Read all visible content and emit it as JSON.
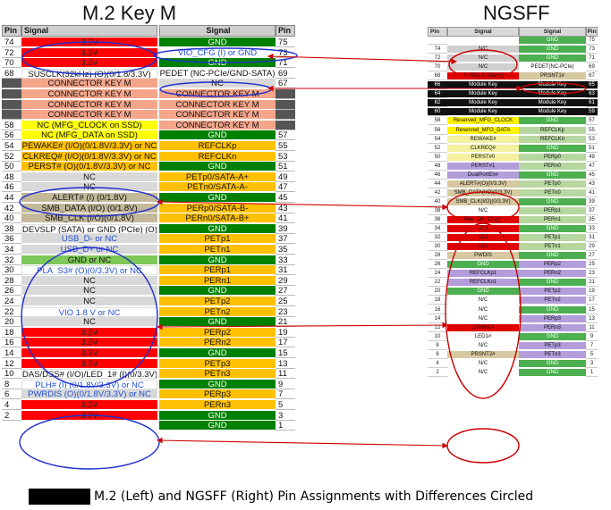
{
  "titles": {
    "left": "M.2 Key M",
    "right": "NGSFF"
  },
  "headers": {
    "pin": "Pin",
    "signal": "Signal"
  },
  "colors": {
    "red": "#ff0000",
    "green": "#008000",
    "orange": "#ffc000",
    "salmon": "#f4a58a",
    "yellow": "#ffff00",
    "tan": "#c4b89a",
    "light": "#d9d9d9",
    "white": "#ffffff",
    "blue_text": "#1f4fd8",
    "circle_red": "#cc0000",
    "circle_blue": "#1e2fd0",
    "ng_green": "#4caf50",
    "ng_lgreen": "#b7d7a0",
    "ng_yellow": "#fff200",
    "ng_lyellow": "#f3f0a0",
    "ng_purple": "#b39ddb",
    "ng_tan": "#d6c8a0",
    "ng_black": "#111111",
    "ng_red": "#e00000",
    "ng_grey": "#d0d0d0"
  },
  "m2": {
    "left_rows": [
      {
        "pin": "74",
        "signal": "3.3V",
        "color": "red"
      },
      {
        "pin": "72",
        "signal": "3.3V",
        "color": "red"
      },
      {
        "pin": "70",
        "signal": "3.3V",
        "color": "red"
      },
      {
        "pin": "68",
        "signal": "SUSCLK(32kHz) (O)(0/1.8/3.3V)",
        "color": "white"
      },
      {
        "pin": "",
        "signal": "CONNECTOR KEY M",
        "color": "salmon"
      },
      {
        "pin": "",
        "signal": "CONNECTOR KEY M",
        "color": "salmon"
      },
      {
        "pin": "",
        "signal": "CONNECTOR KEY M",
        "color": "salmon"
      },
      {
        "pin": "",
        "signal": "CONNECTOR KEY M",
        "color": "salmon"
      },
      {
        "pin": "58",
        "signal": "NC (MFG_CLOCK on SSD)",
        "color": "yellow"
      },
      {
        "pin": "56",
        "signal": "NC (MFG_DATA on SSD)",
        "color": "yellow"
      },
      {
        "pin": "54",
        "signal": "PEWAKE# (I/O)(0/1.8V/3.3V) or NC",
        "color": "orange"
      },
      {
        "pin": "52",
        "signal": "CLKREQ# (I/O)(0/1.8V/3.3V) or NC",
        "color": "orange"
      },
      {
        "pin": "50",
        "signal": "PERST# (O)(0/1.8V/3.3V) or NC",
        "color": "orange"
      },
      {
        "pin": "48",
        "signal": "NC",
        "color": "light"
      },
      {
        "pin": "46",
        "signal": "NC",
        "color": "light"
      },
      {
        "pin": "44",
        "signal": "ALERT# (I) (0/1.8V)",
        "color": "tan"
      },
      {
        "pin": "42",
        "signal": "SMB_DATA (I/O) (0/1.8V)",
        "color": "tan"
      },
      {
        "pin": "40",
        "signal": "SMB_CLK (I/O)(0/1.8V)",
        "color": "tan"
      },
      {
        "pin": "38",
        "signal": "DEVSLP (SATA) or GND (PCIe) (O)",
        "color": "white"
      },
      {
        "pin": "36",
        "signal": "USB_D- or NC",
        "color": "light",
        "blue": true
      },
      {
        "pin": "34",
        "signal": "USB_D+ or NC",
        "color": "light",
        "blue": true
      },
      {
        "pin": "32",
        "signal": "GND or NC",
        "color": "green_light"
      },
      {
        "pin": "30",
        "signal": "PLA_S3# (O)(0/3.3V) or NC",
        "color": "white",
        "blue": true
      },
      {
        "pin": "28",
        "signal": "NC",
        "color": "light"
      },
      {
        "pin": "26",
        "signal": "NC",
        "color": "light"
      },
      {
        "pin": "24",
        "signal": "NC",
        "color": "light"
      },
      {
        "pin": "22",
        "signal": "VIO 1.8 V or NC",
        "color": "white",
        "blue": true
      },
      {
        "pin": "20",
        "signal": "NC",
        "color": "light"
      },
      {
        "pin": "18",
        "signal": "3.3V",
        "color": "red"
      },
      {
        "pin": "16",
        "signal": "3.3V",
        "color": "red"
      },
      {
        "pin": "14",
        "signal": "3.3V",
        "color": "red"
      },
      {
        "pin": "12",
        "signal": "3.3V",
        "color": "red"
      },
      {
        "pin": "10",
        "signal": "DAS/DSS# (I/O)/LED_1# (I)(0/3.3V)",
        "color": "white"
      },
      {
        "pin": "8",
        "signal": "PLH# (I) (0/1.8V/3.3V) or NC",
        "color": "white",
        "blue": true
      },
      {
        "pin": "6",
        "signal": "PWRDIS (O)(0/1.8V/3.3V) or NC",
        "color": "light",
        "blue": true
      },
      {
        "pin": "4",
        "signal": "3.3V",
        "color": "red"
      },
      {
        "pin": "2",
        "signal": "3.3V",
        "color": "red"
      }
    ],
    "right_rows": [
      {
        "pin": "75",
        "signal": "GND",
        "color": "green"
      },
      {
        "pin": "73",
        "signal": "VIO_CFG (I) or GND",
        "color": "white",
        "blue": true
      },
      {
        "pin": "71",
        "signal": "GND",
        "color": "green"
      },
      {
        "pin": "69",
        "signal": "PEDET (NC-PCIe/GND-SATA)",
        "color": "white"
      },
      {
        "pin": "67",
        "signal": "NC",
        "color": "light"
      },
      {
        "pin": "",
        "signal": "CONNECTOR KEY M",
        "color": "salmon"
      },
      {
        "pin": "",
        "signal": "CONNECTOR KEY M",
        "color": "salmon"
      },
      {
        "pin": "",
        "signal": "CONNECTOR KEY M",
        "color": "salmon"
      },
      {
        "pin": "",
        "signal": "CONNECTOR KEY M",
        "color": "salmon"
      },
      {
        "pin": "57",
        "signal": "GND",
        "color": "green"
      },
      {
        "pin": "55",
        "signal": "REFCLKp",
        "color": "orange"
      },
      {
        "pin": "53",
        "signal": "REFCLKn",
        "color": "orange"
      },
      {
        "pin": "51",
        "signal": "GND",
        "color": "green"
      },
      {
        "pin": "49",
        "signal": "PETp0/SATA-A+",
        "color": "orange"
      },
      {
        "pin": "47",
        "signal": "PETn0/SATA-A-",
        "color": "orange"
      },
      {
        "pin": "45",
        "signal": "GND",
        "color": "green"
      },
      {
        "pin": "43",
        "signal": "PERp0/SATA-B-",
        "color": "orange"
      },
      {
        "pin": "41",
        "signal": "PERn0/SATA-B+",
        "color": "orange"
      },
      {
        "pin": "39",
        "signal": "GND",
        "color": "green"
      },
      {
        "pin": "37",
        "signal": "PETp1",
        "color": "orange"
      },
      {
        "pin": "35",
        "signal": "PETn1",
        "color": "orange"
      },
      {
        "pin": "33",
        "signal": "GND",
        "color": "green"
      },
      {
        "pin": "31",
        "signal": "PERp1",
        "color": "orange"
      },
      {
        "pin": "29",
        "signal": "PERn1",
        "color": "orange"
      },
      {
        "pin": "27",
        "signal": "GND",
        "color": "green"
      },
      {
        "pin": "25",
        "signal": "PETp2",
        "color": "orange"
      },
      {
        "pin": "23",
        "signal": "PETn2",
        "color": "orange"
      },
      {
        "pin": "21",
        "signal": "GND",
        "color": "green"
      },
      {
        "pin": "19",
        "signal": "PERp2",
        "color": "orange"
      },
      {
        "pin": "17",
        "signal": "PERn2",
        "color": "orange"
      },
      {
        "pin": "15",
        "signal": "GND",
        "color": "green"
      },
      {
        "pin": "13",
        "signal": "PETp3",
        "color": "orange"
      },
      {
        "pin": "11",
        "signal": "PETn3",
        "color": "orange"
      },
      {
        "pin": "9",
        "signal": "GND",
        "color": "green"
      },
      {
        "pin": "7",
        "signal": "PERp3",
        "color": "orange"
      },
      {
        "pin": "5",
        "signal": "PERn3",
        "color": "orange"
      },
      {
        "pin": "3",
        "signal": "GND",
        "color": "green"
      },
      {
        "pin": "1",
        "signal": "GND",
        "color": "green"
      }
    ]
  },
  "ngsff": {
    "left_rows": [
      {
        "pin": "",
        "signal": "",
        "color": "white"
      },
      {
        "pin": "74",
        "signal": "N/C",
        "color": "ng_grey"
      },
      {
        "pin": "72",
        "signal": "N/C",
        "color": "ng_grey"
      },
      {
        "pin": "70",
        "signal": "N/C",
        "color": "ng_grey"
      },
      {
        "pin": "68",
        "signal": "SUSCLK(32kHz)",
        "color": "ng_red"
      },
      {
        "pin": "66",
        "signal": "Module Key",
        "color": "ng_black"
      },
      {
        "pin": "64",
        "signal": "Module Key",
        "color": "ng_black"
      },
      {
        "pin": "62",
        "signal": "Module Key",
        "color": "ng_black"
      },
      {
        "pin": "60",
        "signal": "Module Key",
        "color": "ng_black"
      },
      {
        "pin": "58",
        "signal": "Reserved_MFG_CLOCK",
        "color": "ng_yellow"
      },
      {
        "pin": "56",
        "signal": "Reserved_MFG_DATA",
        "color": "ng_yellow"
      },
      {
        "pin": "54",
        "signal": "REWAKE#",
        "color": "ng_lyellow"
      },
      {
        "pin": "52",
        "signal": "CLKREQ#",
        "color": "ng_lyellow"
      },
      {
        "pin": "50",
        "signal": "PERST#0",
        "color": "ng_lyellow"
      },
      {
        "pin": "48",
        "signal": "PERST#1",
        "color": "ng_purple"
      },
      {
        "pin": "46",
        "signal": "DualPortEn#",
        "color": "ng_purple"
      },
      {
        "pin": "44",
        "signal": "ALERT#(O)(0/3.3V)",
        "color": "ng_tan"
      },
      {
        "pin": "42",
        "signal": "SMB_DATA(I/O)(0/3.3V)",
        "color": "ng_tan"
      },
      {
        "pin": "40",
        "signal": "SMB_CLK(I/O)(0/3.3V)",
        "color": "ng_tan"
      },
      {
        "pin": "38",
        "signal": "N/C",
        "color": "white"
      },
      {
        "pin": "36",
        "signal": "Pwr_Dis_Charg",
        "color": "ng_red"
      },
      {
        "pin": "34",
        "signal": "12V",
        "color": "ng_red"
      },
      {
        "pin": "32",
        "signal": "12V",
        "color": "ng_red"
      },
      {
        "pin": "30",
        "signal": "12V",
        "color": "ng_red"
      },
      {
        "pin": "28",
        "signal": "PWDIS",
        "color": "ng_tan"
      },
      {
        "pin": "26",
        "signal": "GND",
        "color": "ng_green"
      },
      {
        "pin": "24",
        "signal": "REFCLKp1",
        "color": "ng_purple"
      },
      {
        "pin": "22",
        "signal": "REFCLKn1",
        "color": "ng_purple"
      },
      {
        "pin": "20",
        "signal": "GND",
        "color": "ng_green"
      },
      {
        "pin": "18",
        "signal": "N/C",
        "color": "white"
      },
      {
        "pin": "16",
        "signal": "N/C",
        "color": "white"
      },
      {
        "pin": "14",
        "signal": "N/C",
        "color": "white"
      },
      {
        "pin": "12",
        "signal": "12V/8mA",
        "color": "ng_red"
      },
      {
        "pin": "10",
        "signal": "LED1#",
        "color": "white"
      },
      {
        "pin": "8",
        "signal": "N/C",
        "color": "white"
      },
      {
        "pin": "6",
        "signal": "PRSNT2#",
        "color": "ng_tan"
      },
      {
        "pin": "4",
        "signal": "N/C",
        "color": "white"
      },
      {
        "pin": "2",
        "signal": "N/C",
        "color": "white"
      }
    ],
    "right_rows": [
      {
        "pin": "75",
        "signal": "GND",
        "color": "ng_green"
      },
      {
        "pin": "73",
        "signal": "GND",
        "color": "ng_green"
      },
      {
        "pin": "71",
        "signal": "GND",
        "color": "ng_green"
      },
      {
        "pin": "69",
        "signal": "PEDET(NC-PCIe)",
        "color": "white"
      },
      {
        "pin": "67",
        "signal": "PRSNT1#",
        "color": "ng_tan"
      },
      {
        "pin": "65",
        "signal": "Module Key",
        "color": "ng_black"
      },
      {
        "pin": "63",
        "signal": "Module Key",
        "color": "ng_black"
      },
      {
        "pin": "61",
        "signal": "Module Key",
        "color": "ng_black"
      },
      {
        "pin": "59",
        "signal": "Module Key",
        "color": "ng_black"
      },
      {
        "pin": "57",
        "signal": "GND",
        "color": "ng_green"
      },
      {
        "pin": "55",
        "signal": "REFCLKp",
        "color": "ng_lgreen"
      },
      {
        "pin": "53",
        "signal": "REFCLKn",
        "color": "ng_lgreen"
      },
      {
        "pin": "51",
        "signal": "GND",
        "color": "ng_green"
      },
      {
        "pin": "49",
        "signal": "PERp0",
        "color": "ng_lgreen"
      },
      {
        "pin": "47",
        "signal": "PERn0",
        "color": "ng_lgreen"
      },
      {
        "pin": "45",
        "signal": "GND",
        "color": "ng_green"
      },
      {
        "pin": "43",
        "signal": "PETp0",
        "color": "ng_lgreen"
      },
      {
        "pin": "41",
        "signal": "PETn0",
        "color": "ng_lgreen"
      },
      {
        "pin": "39",
        "signal": "GND",
        "color": "ng_green"
      },
      {
        "pin": "37",
        "signal": "PERp1",
        "color": "ng_lgreen"
      },
      {
        "pin": "35",
        "signal": "PERn1",
        "color": "ng_lgreen"
      },
      {
        "pin": "33",
        "signal": "GND",
        "color": "ng_green"
      },
      {
        "pin": "31",
        "signal": "PETp1",
        "color": "ng_lgreen"
      },
      {
        "pin": "29",
        "signal": "PETn1",
        "color": "ng_lgreen"
      },
      {
        "pin": "27",
        "signal": "GND",
        "color": "ng_green"
      },
      {
        "pin": "25",
        "signal": "PERp2",
        "color": "ng_purple"
      },
      {
        "pin": "23",
        "signal": "PERn2",
        "color": "ng_purple"
      },
      {
        "pin": "21",
        "signal": "GND",
        "color": "ng_green"
      },
      {
        "pin": "19",
        "signal": "PETp2",
        "color": "ng_purple"
      },
      {
        "pin": "17",
        "signal": "PETn2",
        "color": "ng_purple"
      },
      {
        "pin": "15",
        "signal": "GND",
        "color": "ng_green"
      },
      {
        "pin": "13",
        "signal": "PERp3",
        "color": "ng_purple"
      },
      {
        "pin": "11",
        "signal": "PERn3",
        "color": "ng_purple"
      },
      {
        "pin": "9",
        "signal": "GND",
        "color": "ng_green"
      },
      {
        "pin": "7",
        "signal": "PETp3",
        "color": "ng_purple"
      },
      {
        "pin": "5",
        "signal": "PETn3",
        "color": "ng_purple"
      },
      {
        "pin": "3",
        "signal": "GND",
        "color": "ng_green"
      },
      {
        "pin": "1",
        "signal": "GND",
        "color": "ng_green"
      }
    ]
  },
  "caption": "M.2 (Left) and NGSFF (Right) Pin Assignments with Differences Circled"
}
